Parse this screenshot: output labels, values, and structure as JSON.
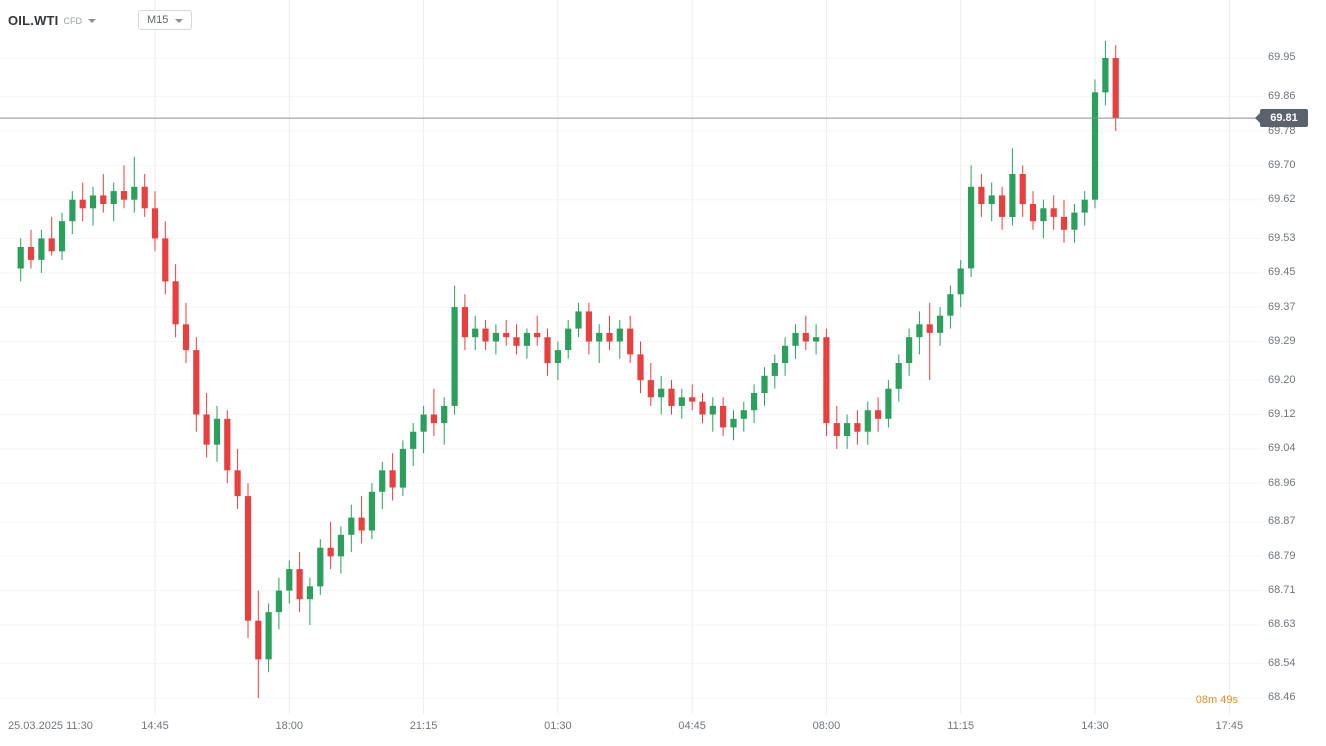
{
  "header": {
    "symbol": "OIL.WTI",
    "instrument_badge": "CFD",
    "timeframe": "M15"
  },
  "price_badge": {
    "value": "69.81"
  },
  "countdown": {
    "text": "08m 49s"
  },
  "colors": {
    "up": "#2aa05c",
    "down": "#e8403f",
    "grid_vertical": "#ecedf0",
    "grid_horizontal": "#f4f5f7",
    "price_line": "#8a9099",
    "badge_bg": "#5a626e",
    "badge_text": "#ffffff",
    "axis_text": "#6f7680",
    "countdown_text": "#e0912f",
    "background": "#ffffff"
  },
  "chart_data": {
    "type": "candlestick",
    "symbol": "OIL.WTI",
    "instrument_type": "CFD",
    "timeframe": "M15",
    "current_price": 69.81,
    "price_range": [
      68.46,
      69.95
    ],
    "y_axis_labels": [
      69.95,
      69.86,
      69.78,
      69.7,
      69.62,
      69.53,
      69.45,
      69.37,
      69.29,
      69.2,
      69.12,
      69.04,
      68.96,
      68.87,
      68.79,
      68.71,
      68.63,
      68.54,
      68.46
    ],
    "x_ticks": [
      {
        "label": "25.03.2025 11:30",
        "candle": 0,
        "align": "left"
      },
      {
        "label": "14:45",
        "candle": 13
      },
      {
        "label": "18:00",
        "candle": 26
      },
      {
        "label": "21:15",
        "candle": 39
      },
      {
        "label": "01:30",
        "candle": 52
      },
      {
        "label": "04:45",
        "candle": 65
      },
      {
        "label": "08:00",
        "candle": 78
      },
      {
        "label": "11:15",
        "candle": 91
      },
      {
        "label": "14:30",
        "candle": 104
      },
      {
        "label": "17:45",
        "candle": 117
      }
    ],
    "candles": [
      [
        69.46,
        69.53,
        69.43,
        69.51
      ],
      [
        69.51,
        69.55,
        69.46,
        69.48
      ],
      [
        69.48,
        69.55,
        69.45,
        69.53
      ],
      [
        69.53,
        69.58,
        69.49,
        69.5
      ],
      [
        69.5,
        69.59,
        69.48,
        69.57
      ],
      [
        69.57,
        69.64,
        69.54,
        69.62
      ],
      [
        69.62,
        69.66,
        69.57,
        69.6
      ],
      [
        69.6,
        69.65,
        69.56,
        69.63
      ],
      [
        69.63,
        69.68,
        69.59,
        69.61
      ],
      [
        69.61,
        69.66,
        69.57,
        69.64
      ],
      [
        69.64,
        69.7,
        69.6,
        69.62
      ],
      [
        69.62,
        69.72,
        69.59,
        69.65
      ],
      [
        69.65,
        69.68,
        69.58,
        69.6
      ],
      [
        69.6,
        69.64,
        69.5,
        69.53
      ],
      [
        69.53,
        69.57,
        69.4,
        69.43
      ],
      [
        69.43,
        69.47,
        69.3,
        69.33
      ],
      [
        69.33,
        69.38,
        69.24,
        69.27
      ],
      [
        69.27,
        69.3,
        69.08,
        69.12
      ],
      [
        69.12,
        69.17,
        69.02,
        69.05
      ],
      [
        69.05,
        69.14,
        69.01,
        69.11
      ],
      [
        69.11,
        69.13,
        68.96,
        68.99
      ],
      [
        68.99,
        69.04,
        68.9,
        68.93
      ],
      [
        68.93,
        68.96,
        68.6,
        68.64
      ],
      [
        68.64,
        68.71,
        68.46,
        68.55
      ],
      [
        68.55,
        68.68,
        68.52,
        68.66
      ],
      [
        68.66,
        68.74,
        68.62,
        68.71
      ],
      [
        68.71,
        68.78,
        68.68,
        68.76
      ],
      [
        68.76,
        68.8,
        68.66,
        68.69
      ],
      [
        68.69,
        68.74,
        68.63,
        68.72
      ],
      [
        68.72,
        68.83,
        68.7,
        68.81
      ],
      [
        68.81,
        68.87,
        68.76,
        68.79
      ],
      [
        68.79,
        68.86,
        68.75,
        68.84
      ],
      [
        68.84,
        68.91,
        68.8,
        68.88
      ],
      [
        68.88,
        68.93,
        68.82,
        68.85
      ],
      [
        68.85,
        68.96,
        68.83,
        68.94
      ],
      [
        68.94,
        69.01,
        68.9,
        68.99
      ],
      [
        68.99,
        69.03,
        68.92,
        68.95
      ],
      [
        68.95,
        69.06,
        68.93,
        69.04
      ],
      [
        69.04,
        69.1,
        69.0,
        69.08
      ],
      [
        69.08,
        69.14,
        69.03,
        69.12
      ],
      [
        69.12,
        69.18,
        69.07,
        69.1
      ],
      [
        69.1,
        69.16,
        69.05,
        69.14
      ],
      [
        69.14,
        69.42,
        69.12,
        69.37
      ],
      [
        69.37,
        69.4,
        69.27,
        69.3
      ],
      [
        69.3,
        69.35,
        69.27,
        69.32
      ],
      [
        69.32,
        69.34,
        69.27,
        69.29
      ],
      [
        69.29,
        69.33,
        69.26,
        69.31
      ],
      [
        69.31,
        69.34,
        69.28,
        69.3
      ],
      [
        69.3,
        69.33,
        69.26,
        69.28
      ],
      [
        69.28,
        69.32,
        69.25,
        69.31
      ],
      [
        69.31,
        69.35,
        69.28,
        69.3
      ],
      [
        69.3,
        69.32,
        69.21,
        69.24
      ],
      [
        69.24,
        69.29,
        69.2,
        69.27
      ],
      [
        69.27,
        69.34,
        69.25,
        69.32
      ],
      [
        69.32,
        69.38,
        69.3,
        69.36
      ],
      [
        69.36,
        69.38,
        69.26,
        69.29
      ],
      [
        69.29,
        69.33,
        69.24,
        69.31
      ],
      [
        69.31,
        69.35,
        69.27,
        69.29
      ],
      [
        69.29,
        69.34,
        69.25,
        69.32
      ],
      [
        69.32,
        69.35,
        69.24,
        69.26
      ],
      [
        69.26,
        69.29,
        69.17,
        69.2
      ],
      [
        69.2,
        69.24,
        69.14,
        69.16
      ],
      [
        69.16,
        69.21,
        69.12,
        69.18
      ],
      [
        69.18,
        69.2,
        69.12,
        69.14
      ],
      [
        69.14,
        69.18,
        69.11,
        69.16
      ],
      [
        69.16,
        69.19,
        69.13,
        69.15
      ],
      [
        69.15,
        69.17,
        69.1,
        69.12
      ],
      [
        69.12,
        69.16,
        69.08,
        69.14
      ],
      [
        69.14,
        69.16,
        69.07,
        69.09
      ],
      [
        69.09,
        69.13,
        69.06,
        69.11
      ],
      [
        69.11,
        69.15,
        69.08,
        69.13
      ],
      [
        69.13,
        69.19,
        69.1,
        69.17
      ],
      [
        69.17,
        69.23,
        69.14,
        69.21
      ],
      [
        69.21,
        69.26,
        69.18,
        69.24
      ],
      [
        69.24,
        69.3,
        69.21,
        69.28
      ],
      [
        69.28,
        69.33,
        69.25,
        69.31
      ],
      [
        69.31,
        69.35,
        69.27,
        69.29
      ],
      [
        69.29,
        69.33,
        69.26,
        69.3
      ],
      [
        69.3,
        69.32,
        69.07,
        69.1
      ],
      [
        69.1,
        69.14,
        69.04,
        69.07
      ],
      [
        69.07,
        69.12,
        69.04,
        69.1
      ],
      [
        69.1,
        69.13,
        69.05,
        69.08
      ],
      [
        69.08,
        69.15,
        69.05,
        69.13
      ],
      [
        69.13,
        69.16,
        69.08,
        69.11
      ],
      [
        69.11,
        69.2,
        69.09,
        69.18
      ],
      [
        69.18,
        69.26,
        69.15,
        69.24
      ],
      [
        69.24,
        69.32,
        69.21,
        69.3
      ],
      [
        69.3,
        69.36,
        69.26,
        69.33
      ],
      [
        69.33,
        69.38,
        69.2,
        69.31
      ],
      [
        69.31,
        69.37,
        69.28,
        69.35
      ],
      [
        69.35,
        69.42,
        69.32,
        69.4
      ],
      [
        69.4,
        69.48,
        69.37,
        69.46
      ],
      [
        69.46,
        69.7,
        69.44,
        69.65
      ],
      [
        69.65,
        69.68,
        69.58,
        69.61
      ],
      [
        69.61,
        69.66,
        69.57,
        69.63
      ],
      [
        69.63,
        69.65,
        69.55,
        69.58
      ],
      [
        69.58,
        69.74,
        69.56,
        69.68
      ],
      [
        69.68,
        69.7,
        69.58,
        69.61
      ],
      [
        69.61,
        69.64,
        69.55,
        69.57
      ],
      [
        69.57,
        69.62,
        69.53,
        69.6
      ],
      [
        69.6,
        69.63,
        69.55,
        69.58
      ],
      [
        69.58,
        69.62,
        69.52,
        69.55
      ],
      [
        69.55,
        69.61,
        69.52,
        69.59
      ],
      [
        69.59,
        69.64,
        69.56,
        69.62
      ],
      [
        69.62,
        69.9,
        69.6,
        69.87
      ],
      [
        69.87,
        69.99,
        69.84,
        69.95
      ],
      [
        69.95,
        69.98,
        69.78,
        69.81
      ]
    ]
  }
}
